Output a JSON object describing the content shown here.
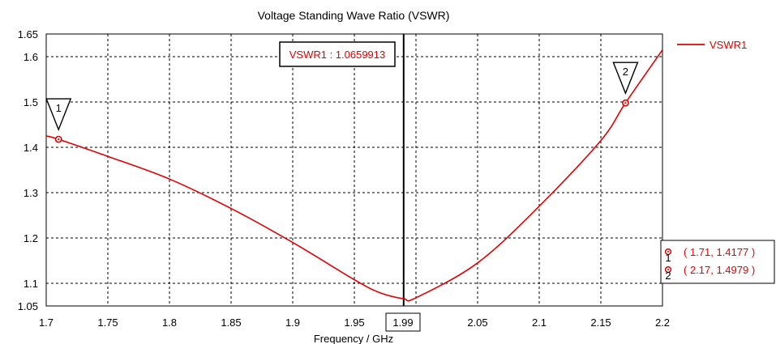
{
  "chart_data": {
    "type": "line",
    "title": "Voltage Standing Wave Ratio (VSWR)",
    "xlabel": "Frequency / GHz",
    "ylabel": "",
    "xlim": [
      1.7,
      2.2
    ],
    "ylim": [
      1.05,
      1.65
    ],
    "xticks": [
      "1.7",
      "1.75",
      "1.8",
      "1.85",
      "1.9",
      "1.95",
      "1.99",
      "2.05",
      "2.1",
      "2.15",
      "2.2"
    ],
    "xtick_values": [
      1.7,
      1.75,
      1.8,
      1.85,
      1.9,
      1.95,
      1.99,
      2.05,
      2.1,
      2.15,
      2.2
    ],
    "xgrid_values": [
      1.7,
      1.75,
      1.8,
      1.85,
      1.9,
      1.95,
      2.0,
      2.05,
      2.1,
      2.15,
      2.2
    ],
    "yticks": [
      "1.05",
      "1.1",
      "1.2",
      "1.3",
      "1.4",
      "1.5",
      "1.6",
      "1.65"
    ],
    "ytick_values": [
      1.05,
      1.1,
      1.2,
      1.3,
      1.4,
      1.5,
      1.6,
      1.65
    ],
    "ygrid_values": [
      1.1,
      1.2,
      1.3,
      1.4,
      1.5,
      1.6
    ],
    "grid": true,
    "legend_position": "top-right",
    "series": [
      {
        "name": "VSWR1",
        "color": "#e00000",
        "x": [
          1.7,
          1.71,
          1.75,
          1.8,
          1.85,
          1.9,
          1.95,
          1.97,
          1.99,
          2.0,
          2.05,
          2.1,
          2.15,
          2.17,
          2.2
        ],
        "y": [
          1.425,
          1.4177,
          1.38,
          1.33,
          1.265,
          1.19,
          1.108,
          1.08,
          1.066,
          1.068,
          1.145,
          1.27,
          1.415,
          1.4979,
          1.615
        ]
      }
    ],
    "cursor": {
      "x": 1.99,
      "label": "1.99",
      "readout": "VSWR1 : 1.0659913"
    },
    "markers": [
      {
        "id": "1",
        "x": 1.71,
        "y": 1.4177,
        "text": "( 1.71, 1.4177 )"
      },
      {
        "id": "2",
        "x": 2.17,
        "y": 1.4979,
        "text": "( 2.17, 1.4979 )"
      }
    ]
  }
}
